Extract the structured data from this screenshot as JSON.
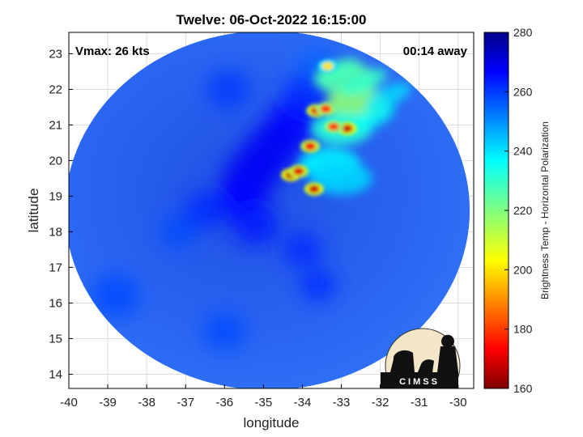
{
  "chart_data": {
    "type": "heatmap",
    "title": "Twelve: 06-Oct-2022 16:15:00",
    "xlabel": "longitude",
    "ylabel": "latitude",
    "xlim": [
      -40,
      -29.6
    ],
    "ylim": [
      13.6,
      23.6
    ],
    "xticks": [
      "-40",
      "-39",
      "-38",
      "-37",
      "-36",
      "-35",
      "-34",
      "-33",
      "-32",
      "-31",
      "-30"
    ],
    "yticks": [
      "14",
      "15",
      "16",
      "17",
      "18",
      "19",
      "20",
      "21",
      "22",
      "23"
    ],
    "grid": true,
    "colorbar": {
      "label": "Brightness Temp - Horizontal Polarization",
      "range": [
        160,
        280
      ],
      "ticks": [
        "160",
        "180",
        "200",
        "220",
        "240",
        "260",
        "280"
      ],
      "colormap": "jet"
    },
    "annotations": {
      "vmax": "Vmax: 26 kts",
      "time_away": "00:14 away"
    },
    "swath_center": {
      "lon": -34.9,
      "lat": 18.6
    },
    "cold_cells": [
      {
        "lon": -34.3,
        "lat": 19.6,
        "tb": 165
      },
      {
        "lon": -34.1,
        "lat": 19.7,
        "tb": 170
      },
      {
        "lon": -33.7,
        "lat": 19.2,
        "tb": 168
      },
      {
        "lon": -33.8,
        "lat": 20.4,
        "tb": 172
      },
      {
        "lon": -33.65,
        "lat": 21.4,
        "tb": 170
      },
      {
        "lon": -33.4,
        "lat": 21.45,
        "tb": 178
      },
      {
        "lon": -32.85,
        "lat": 20.9,
        "tb": 168
      },
      {
        "lon": -33.2,
        "lat": 20.95,
        "tb": 180
      },
      {
        "lon": -33.35,
        "lat": 22.65,
        "tb": 200
      }
    ],
    "warm_bands": [
      {
        "lon": -32.6,
        "lat": 21.6,
        "tb": 218
      },
      {
        "lon": -32.9,
        "lat": 22.3,
        "tb": 225
      },
      {
        "lon": -33.0,
        "lat": 20.9,
        "tb": 232
      },
      {
        "lon": -33.3,
        "lat": 19.9,
        "tb": 238
      },
      {
        "lon": -33.0,
        "lat": 19.5,
        "tb": 242
      }
    ]
  },
  "logo": {
    "text": "CIMSS"
  },
  "colors": {
    "background": "#ffffff",
    "axes_edge": "#000000",
    "grid": "#d9d9d9"
  }
}
